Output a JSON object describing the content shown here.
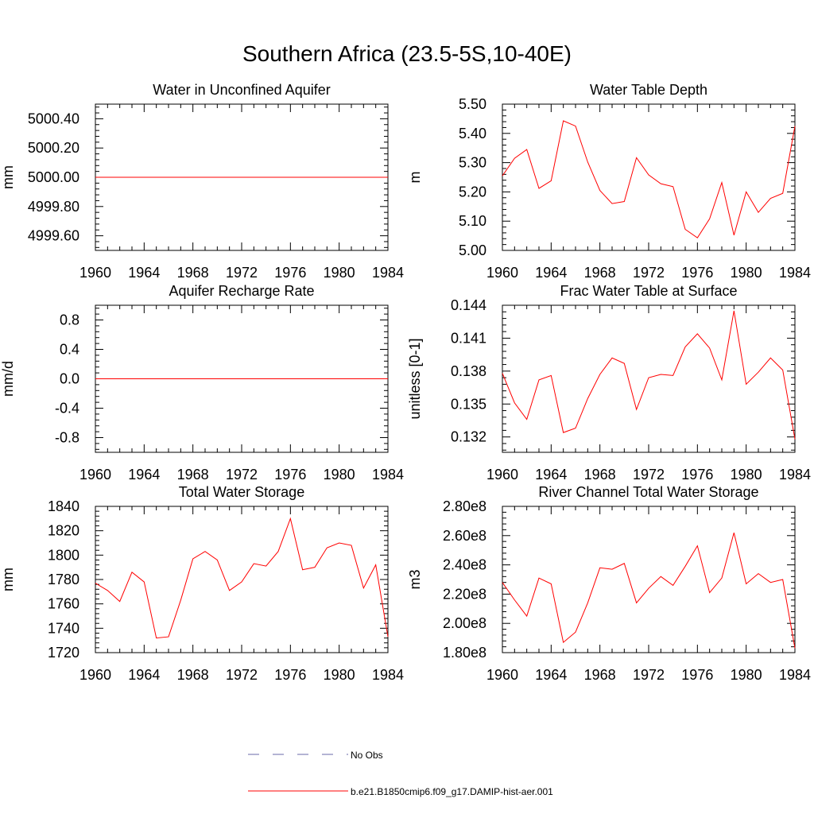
{
  "title": "Southern Africa (23.5-5S,10-40E)",
  "colors": {
    "model": "#ff0000",
    "obs": "#6a6aa8",
    "axis": "#000000"
  },
  "legend": {
    "obs_label": "No Obs",
    "model_label": "b.e21.B1850cmip6.f09_g17.DAMIP-hist-aer.001"
  },
  "chart_data": [
    {
      "type": "line",
      "title": "Water in Unconfined Aquifer",
      "xlabel": "",
      "ylabel": "mm",
      "xlim": [
        1960,
        1984
      ],
      "ylim": [
        4999.5,
        5000.5
      ],
      "xticks": [
        "1960",
        "1964",
        "1968",
        "1972",
        "1976",
        "1980",
        "1984"
      ],
      "yticks": [
        "4999.60",
        "4999.80",
        "5000.00",
        "5000.20",
        "5000.40"
      ],
      "yticks_values": [
        4999.6,
        4999.8,
        5000.0,
        5000.2,
        5000.4
      ],
      "x": [
        1960,
        1961,
        1962,
        1963,
        1964,
        1965,
        1966,
        1967,
        1968,
        1969,
        1970,
        1971,
        1972,
        1973,
        1974,
        1975,
        1976,
        1977,
        1978,
        1979,
        1980,
        1981,
        1982,
        1983,
        1984
      ],
      "series": [
        {
          "values": [
            5000,
            5000,
            5000,
            5000,
            5000,
            5000,
            5000,
            5000,
            5000,
            5000,
            5000,
            5000,
            5000,
            5000,
            5000,
            5000,
            5000,
            5000,
            5000,
            5000,
            5000,
            5000,
            5000,
            5000,
            5000
          ]
        }
      ]
    },
    {
      "type": "line",
      "title": "Water Table Depth",
      "xlabel": "",
      "ylabel": "m",
      "xlim": [
        1960,
        1984
      ],
      "ylim": [
        5.0,
        5.5
      ],
      "xticks": [
        "1960",
        "1964",
        "1968",
        "1972",
        "1976",
        "1980",
        "1984"
      ],
      "yticks": [
        "5.00",
        "5.10",
        "5.20",
        "5.30",
        "5.40",
        "5.50"
      ],
      "yticks_values": [
        5.0,
        5.1,
        5.2,
        5.3,
        5.4,
        5.5
      ],
      "x": [
        1960,
        1961,
        1962,
        1963,
        1964,
        1965,
        1966,
        1967,
        1968,
        1969,
        1970,
        1971,
        1972,
        1973,
        1974,
        1975,
        1976,
        1977,
        1978,
        1979,
        1980,
        1981,
        1982,
        1983,
        1984
      ],
      "series": [
        {
          "values": [
            5.255,
            5.315,
            5.345,
            5.212,
            5.238,
            5.443,
            5.425,
            5.302,
            5.205,
            5.16,
            5.167,
            5.317,
            5.258,
            5.228,
            5.218,
            5.072,
            5.043,
            5.108,
            5.232,
            5.052,
            5.2,
            5.13,
            5.178,
            5.195,
            5.425
          ]
        }
      ]
    },
    {
      "type": "line",
      "title": "Aquifer Recharge Rate",
      "xlabel": "",
      "ylabel": "mm/d",
      "xlim": [
        1960,
        1984
      ],
      "ylim": [
        -1.0,
        1.0
      ],
      "xticks": [
        "1960",
        "1964",
        "1968",
        "1972",
        "1976",
        "1980",
        "1984"
      ],
      "yticks": [
        "-0.8",
        "-0.4",
        "0.0",
        "0.4",
        "0.8"
      ],
      "yticks_values": [
        -0.8,
        -0.4,
        0.0,
        0.4,
        0.8
      ],
      "x": [
        1960,
        1961,
        1962,
        1963,
        1964,
        1965,
        1966,
        1967,
        1968,
        1969,
        1970,
        1971,
        1972,
        1973,
        1974,
        1975,
        1976,
        1977,
        1978,
        1979,
        1980,
        1981,
        1982,
        1983,
        1984
      ],
      "series": [
        {
          "values": [
            0,
            0,
            0,
            0,
            0,
            0,
            0,
            0,
            0,
            0,
            0,
            0,
            0,
            0,
            0,
            0,
            0,
            0,
            0,
            0,
            0,
            0,
            0,
            0,
            0
          ]
        }
      ]
    },
    {
      "type": "line",
      "title": "Frac Water Table at Surface",
      "xlabel": "",
      "ylabel": "unitless [0-1]",
      "xlim": [
        1960,
        1984
      ],
      "ylim": [
        0.1306,
        0.144
      ],
      "xticks": [
        "1960",
        "1964",
        "1968",
        "1972",
        "1976",
        "1980",
        "1984"
      ],
      "yticks": [
        "0.132",
        "0.135",
        "0.138",
        "0.141",
        "0.144"
      ],
      "yticks_values": [
        0.132,
        0.135,
        0.138,
        0.141,
        0.144
      ],
      "x": [
        1960,
        1961,
        1962,
        1963,
        1964,
        1965,
        1966,
        1967,
        1968,
        1969,
        1970,
        1971,
        1972,
        1973,
        1974,
        1975,
        1976,
        1977,
        1978,
        1979,
        1980,
        1981,
        1982,
        1983,
        1984
      ],
      "series": [
        {
          "values": [
            0.1378,
            0.1351,
            0.1336,
            0.1372,
            0.1376,
            0.1324,
            0.1328,
            0.1355,
            0.1377,
            0.1392,
            0.1387,
            0.1345,
            0.1374,
            0.1377,
            0.1376,
            0.1402,
            0.1414,
            0.1401,
            0.1372,
            0.1435,
            0.1368,
            0.1379,
            0.1392,
            0.1381,
            0.1318
          ]
        }
      ]
    },
    {
      "type": "line",
      "title": "Total Water Storage",
      "xlabel": "",
      "ylabel": "mm",
      "xlim": [
        1960,
        1984
      ],
      "ylim": [
        1720,
        1840
      ],
      "xticks": [
        "1960",
        "1964",
        "1968",
        "1972",
        "1976",
        "1980",
        "1984"
      ],
      "yticks": [
        "1720",
        "1740",
        "1760",
        "1780",
        "1800",
        "1820",
        "1840"
      ],
      "yticks_values": [
        1720,
        1740,
        1760,
        1780,
        1800,
        1820,
        1840
      ],
      "x": [
        1960,
        1961,
        1962,
        1963,
        1964,
        1965,
        1966,
        1967,
        1968,
        1969,
        1970,
        1971,
        1972,
        1973,
        1974,
        1975,
        1976,
        1977,
        1978,
        1979,
        1980,
        1981,
        1982,
        1983,
        1984
      ],
      "series": [
        {
          "values": [
            1777,
            1771,
            1762,
            1786,
            1778,
            1732,
            1733,
            1763,
            1797,
            1803,
            1796,
            1771,
            1778,
            1793,
            1791,
            1803,
            1830,
            1788,
            1790,
            1806,
            1810,
            1808,
            1773,
            1792,
            1733
          ]
        }
      ]
    },
    {
      "type": "line",
      "title": "River Channel Total Water Storage",
      "xlabel": "",
      "ylabel": "m3",
      "xlim": [
        1960,
        1984
      ],
      "ylim": [
        180000000,
        280000000
      ],
      "xticks": [
        "1960",
        "1964",
        "1968",
        "1972",
        "1976",
        "1980",
        "1984"
      ],
      "yticks": [
        "1.80e8",
        "2.00e8",
        "2.20e8",
        "2.40e8",
        "2.60e8",
        "2.80e8"
      ],
      "yticks_values": [
        180000000,
        200000000,
        220000000,
        240000000,
        260000000,
        280000000
      ],
      "x": [
        1960,
        1961,
        1962,
        1963,
        1964,
        1965,
        1966,
        1967,
        1968,
        1969,
        1970,
        1971,
        1972,
        1973,
        1974,
        1975,
        1976,
        1977,
        1978,
        1979,
        1980,
        1981,
        1982,
        1983,
        1984
      ],
      "series": [
        {
          "values": [
            228000000,
            216000000,
            205000000,
            231000000,
            227000000,
            187000000,
            194000000,
            214000000,
            238000000,
            237000000,
            241000000,
            214000000,
            224000000,
            232000000,
            226000000,
            239000000,
            253000000,
            221000000,
            231000000,
            262000000,
            227000000,
            234000000,
            228000000,
            230000000,
            183000000
          ]
        }
      ]
    }
  ]
}
